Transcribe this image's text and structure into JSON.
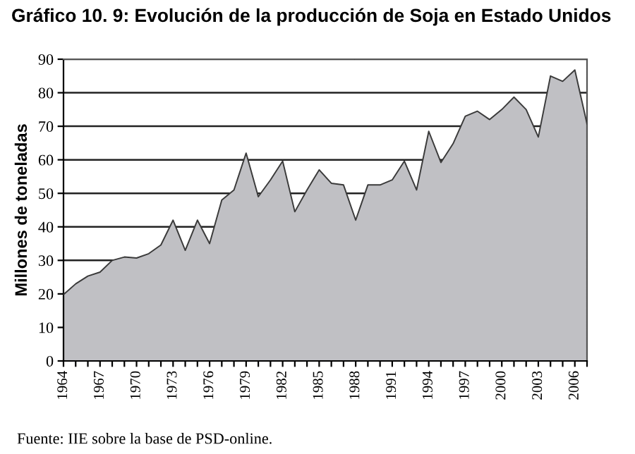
{
  "chart_data": {
    "type": "area",
    "title": "Gráfico 10. 9: Evolución de la producción de Soja en Estado Unidos",
    "ylabel": "Millones de toneladas",
    "categories": [
      "1964",
      null,
      null,
      "1967",
      null,
      null,
      "1970",
      null,
      null,
      "1973",
      null,
      null,
      "1976",
      null,
      null,
      "1979",
      null,
      null,
      "1982",
      null,
      null,
      "1985",
      null,
      null,
      "1988",
      null,
      null,
      "1991",
      null,
      null,
      "1994",
      null,
      null,
      "1997",
      null,
      null,
      "2000",
      null,
      null,
      "2003",
      null,
      null,
      "2006",
      null
    ],
    "series": [
      {
        "color": "#c0c0c4",
        "values": [
          19.8,
          23,
          25.3,
          26.5,
          30,
          31,
          30.7,
          32,
          34.6,
          42,
          33,
          42,
          35,
          48,
          51,
          62,
          49,
          54,
          59.6,
          44.5,
          51,
          57,
          53,
          52.5,
          42,
          52.5,
          52.5,
          54,
          59.6,
          51,
          68.5,
          59.2,
          64.8,
          73,
          74.5,
          72,
          75,
          78.7,
          75,
          66.8,
          85,
          83.4,
          86.8,
          70.7
        ]
      }
    ],
    "ylim": [
      0,
      90
    ],
    "yticks": [
      0,
      10,
      20,
      30,
      40,
      50,
      60,
      70,
      80,
      90
    ],
    "grid": "y",
    "legend": false,
    "annotations": [
      "Fuente: IIE sobre la base de PSD-online."
    ]
  }
}
